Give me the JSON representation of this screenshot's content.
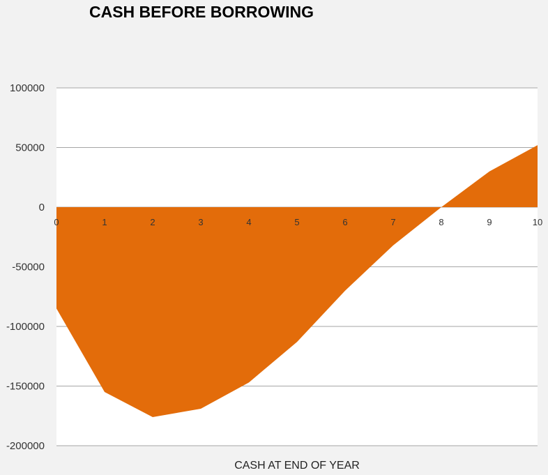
{
  "chart_data": {
    "type": "area",
    "title": "CASH BEFORE BORROWING",
    "xlabel": "CASH AT END OF YEAR",
    "ylabel": "",
    "x": [
      0,
      1,
      2,
      3,
      4,
      5,
      6,
      7,
      8,
      9,
      10
    ],
    "series": [
      {
        "values": [
          -85000,
          -155000,
          -176000,
          -169000,
          -147000,
          -113000,
          -70000,
          -32000,
          0,
          30000,
          52000
        ],
        "color": "#e36c0a"
      }
    ],
    "yticks": [
      "100000",
      "50000",
      "0",
      "-50000",
      "-100000",
      "-150000",
      "-200000"
    ],
    "xticks": [
      "0",
      "1",
      "2",
      "3",
      "4",
      "5",
      "6",
      "7",
      "8",
      "9",
      "10"
    ],
    "ylim": [
      -200000,
      100000
    ],
    "xlim": [
      0,
      10
    ],
    "grid": "horizontal",
    "legend": "none",
    "colors": {
      "area": "#e36c0a",
      "plot_bg": "#ffffff",
      "page_bg": "#f2f2f2",
      "grid": "#a6a6a6"
    }
  }
}
